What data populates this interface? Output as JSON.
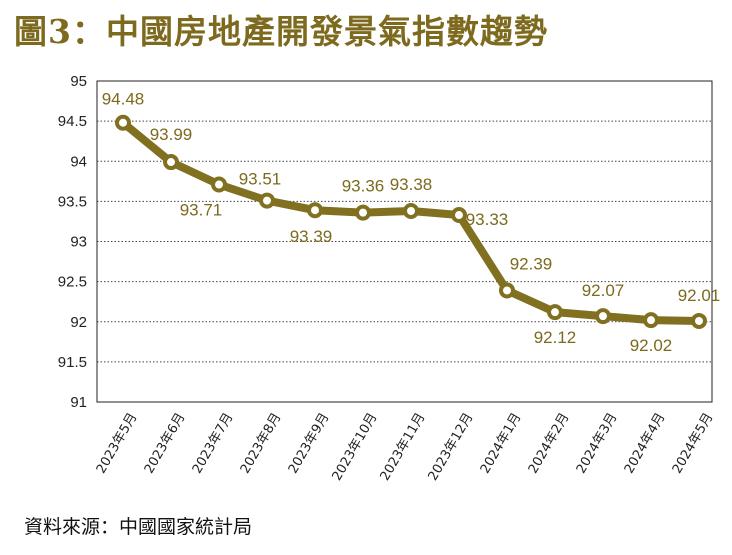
{
  "title": "圖3：中國房地產開發景氣指數趨勢",
  "source": "資料來源：中國國家統計局",
  "colors": {
    "accent": "#807020",
    "title": "#7d6a1e",
    "label": "#7d6a1e",
    "point_fill": "#ffffff",
    "grid": "#444444"
  },
  "chart_data": {
    "type": "line",
    "title": "圖3：中國房地產開發景氣指數趨勢",
    "xlabel": "",
    "ylabel": "",
    "ylim": [
      91,
      95
    ],
    "yticks": [
      91,
      91.5,
      92,
      92.5,
      93,
      93.5,
      94,
      94.5,
      95
    ],
    "grid": "horizontal dotted",
    "legend": "none",
    "categories": [
      "2023年5月",
      "2023年6月",
      "2023年7月",
      "2023年8月",
      "2023年9月",
      "2023年10月",
      "2023年11月",
      "2023年12月",
      "2024年1月",
      "2024年2月",
      "2024年3月",
      "2024年4月",
      "2024年5月"
    ],
    "series": [
      {
        "values": [
          94.48,
          93.99,
          93.71,
          93.51,
          93.39,
          93.36,
          93.38,
          93.33,
          92.39,
          92.12,
          92.07,
          92.02,
          92.01
        ],
        "labels": [
          "94.48",
          "93.99",
          "93.71",
          "93.51",
          "93.39",
          "93.36",
          "93.38",
          "93.33",
          "92.39",
          "92.12",
          "92.07",
          "92.02",
          "92.01"
        ]
      }
    ]
  }
}
